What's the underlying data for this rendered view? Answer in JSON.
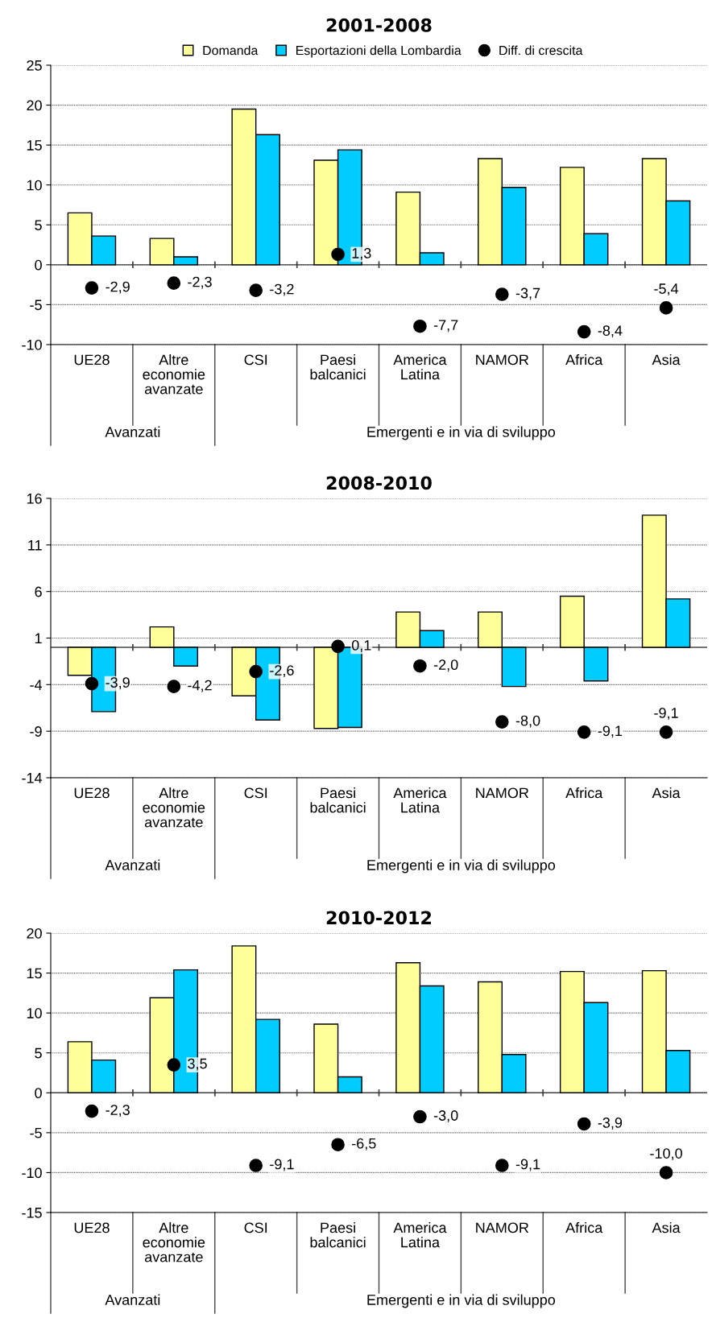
{
  "chart_data": [
    {
      "type": "bar",
      "title": "2001-2008",
      "categories": [
        "UE28",
        "Altre\neconomie\navanzate",
        "CSI",
        "Paesi\nbalcanici",
        "America\nLatina",
        "NAMOR",
        "Africa",
        "Asia"
      ],
      "series": [
        {
          "name": "Domanda",
          "color": "#ffff99",
          "values": [
            6.5,
            3.3,
            19.5,
            13.1,
            9.1,
            13.3,
            12.2,
            13.3
          ]
        },
        {
          "name": "Esportazioni della Lombardia",
          "color": "#00ccff",
          "values": [
            3.6,
            1.0,
            16.3,
            14.4,
            1.5,
            9.7,
            3.9,
            8.0
          ]
        },
        {
          "name": "Diff. di crescita",
          "type": "scatter",
          "color": "#000000",
          "marker": "circle",
          "values": [
            -2.9,
            -2.3,
            -3.2,
            1.3,
            -7.7,
            -3.7,
            -8.4,
            -5.4
          ],
          "value_labels": [
            "-2,9",
            "-2,3",
            "-3,2",
            "1,3",
            "-7,7",
            "-3,7",
            "-8,4",
            "-5,4"
          ]
        }
      ],
      "ylim": [
        -10,
        25
      ],
      "yticks": [
        -10,
        -5,
        0,
        5,
        10,
        15,
        20,
        25
      ],
      "grid": "y",
      "legend": "top",
      "annotations": [
        "Avanzati",
        "Emergenti e in via di sviluppo"
      ]
    },
    {
      "type": "bar",
      "title": "2008-2010",
      "categories": [
        "UE28",
        "Altre\neconomie\navanzate",
        "CSI",
        "Paesi\nbalcanici",
        "America\nLatina",
        "NAMOR",
        "Africa",
        "Asia"
      ],
      "series": [
        {
          "color": "#ffff99",
          "values": [
            -3.0,
            2.2,
            -5.2,
            -8.7,
            3.8,
            3.8,
            5.5,
            14.2
          ]
        },
        {
          "color": "#00ccff",
          "values": [
            -6.9,
            -2.0,
            -7.8,
            -8.6,
            1.8,
            -4.2,
            -3.6,
            5.2
          ]
        },
        {
          "type": "scatter",
          "color": "#000000",
          "marker": "circle",
          "values": [
            -3.9,
            -4.2,
            -2.6,
            0.1,
            -2.0,
            -8.0,
            -9.1,
            -9.1
          ],
          "value_labels": [
            "-3,9",
            "-4,2",
            "-2,6",
            "0,1",
            "-2,0",
            "-8,0",
            "-9,1",
            "-9,1"
          ]
        }
      ],
      "ylim": [
        -14,
        16
      ],
      "yticks": [
        -14,
        -9,
        -4,
        1,
        6,
        11,
        16
      ],
      "grid": "y",
      "annotations": [
        "Avanzati",
        "Emergenti e in via di sviluppo"
      ]
    },
    {
      "type": "bar",
      "title": "2010-2012",
      "categories": [
        "UE28",
        "Altre\neconomie\navanzate",
        "CSI",
        "Paesi\nbalcanici",
        "America\nLatina",
        "NAMOR",
        "Africa",
        "Asia"
      ],
      "series": [
        {
          "color": "#ffff99",
          "values": [
            6.4,
            11.9,
            18.4,
            8.6,
            16.3,
            13.9,
            15.2,
            15.3
          ]
        },
        {
          "color": "#00ccff",
          "values": [
            4.1,
            15.4,
            9.2,
            2.0,
            13.4,
            4.8,
            11.3,
            5.3
          ]
        },
        {
          "type": "scatter",
          "color": "#000000",
          "marker": "circle",
          "values": [
            -2.3,
            3.5,
            -9.1,
            -6.5,
            -3.0,
            -9.1,
            -3.9,
            -10.0
          ],
          "value_labels": [
            "-2,3",
            "3,5",
            "-9,1",
            "-6,5",
            "-3,0",
            "-9,1",
            "-3,9",
            "-10,0"
          ]
        }
      ],
      "ylim": [
        -15,
        20
      ],
      "yticks": [
        -15,
        -10,
        -5,
        0,
        5,
        10,
        15,
        20
      ],
      "grid": "y",
      "annotations": [
        "Avanzati",
        "Emergenti e in via di sviluppo"
      ]
    }
  ]
}
